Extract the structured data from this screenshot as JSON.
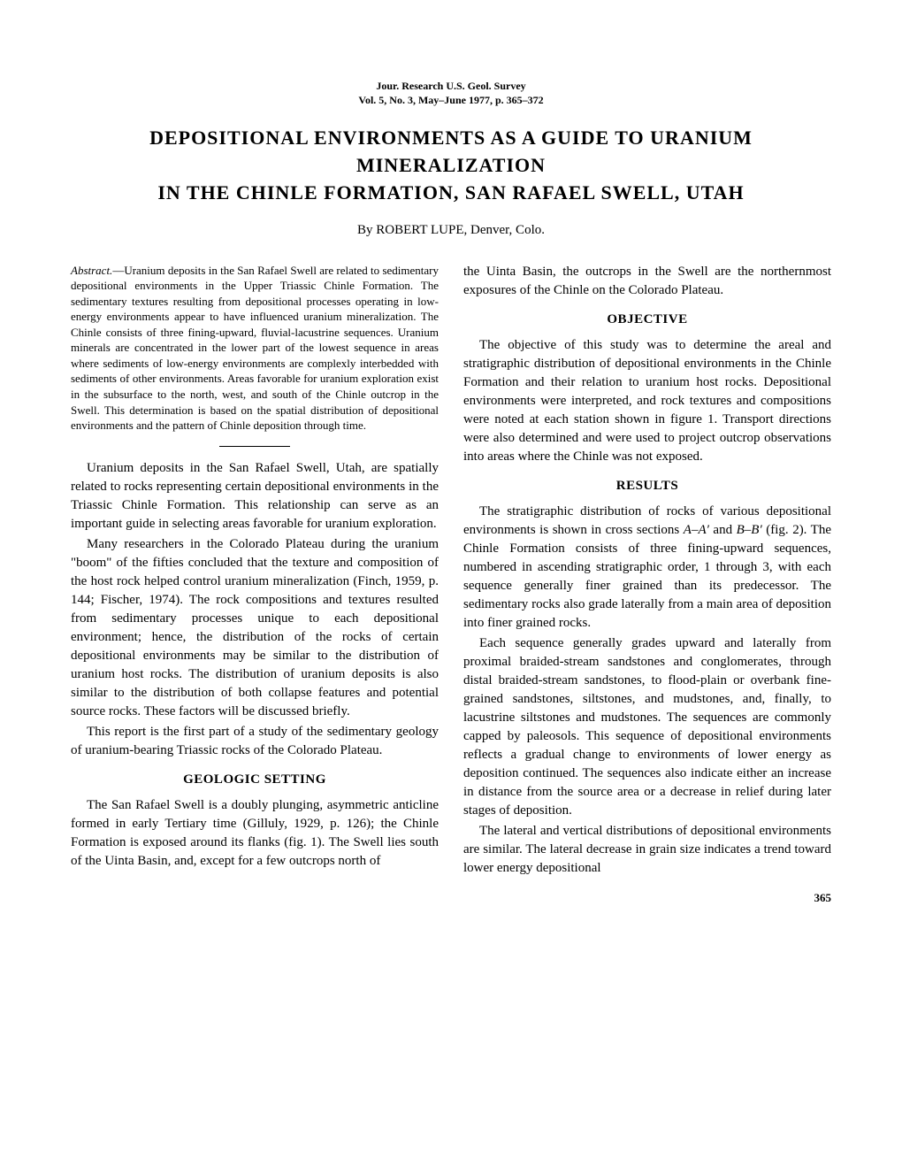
{
  "journal_header": {
    "line1": "Jour. Research U.S. Geol. Survey",
    "line2": "Vol. 5, No. 3, May–June 1977, p. 365–372"
  },
  "title": {
    "line1": "DEPOSITIONAL ENVIRONMENTS AS A GUIDE TO URANIUM MINERALIZATION",
    "line2": "IN THE CHINLE FORMATION, SAN RAFAEL SWELL, UTAH"
  },
  "author": {
    "by": "By",
    "name": "ROBERT LUPE, Denver, Colo."
  },
  "abstract": {
    "label": "Abstract.",
    "text": "—Uranium deposits in the San Rafael Swell are related to sedimentary depositional environments in the Upper Triassic Chinle Formation. The sedimentary textures resulting from depositional processes operating in low-energy environments appear to have influenced uranium mineralization. The Chinle consists of three fining-upward, fluvial-lacustrine sequences. Uranium minerals are concentrated in the lower part of the lowest sequence in areas where sediments of low-energy environments are complexly interbedded with sediments of other environments. Areas favorable for uranium exploration exist in the subsurface to the north, west, and south of the Chinle outcrop in the Swell. This determination is based on the spatial distribution of depositional environments and the pattern of Chinle deposition through time."
  },
  "intro": {
    "p1": "Uranium deposits in the San Rafael Swell, Utah, are spatially related to rocks representing certain depositional environments in the Triassic Chinle Formation. This relationship can serve as an important guide in selecting areas favorable for uranium exploration.",
    "p2": "Many researchers in the Colorado Plateau during the uranium \"boom\" of the fifties concluded that the texture and composition of the host rock helped control uranium mineralization (Finch, 1959, p. 144; Fischer, 1974). The rock compositions and textures resulted from sedimentary processes unique to each depositional environment; hence, the distribution of the rocks of certain depositional environments may be similar to the distribution of uranium host rocks. The distribution of uranium deposits is also similar to the distribution of both collapse features and potential source rocks. These factors will be discussed briefly.",
    "p3": "This report is the first part of a study of the sedimentary geology of uranium-bearing Triassic rocks of the Colorado Plateau."
  },
  "geologic_setting": {
    "heading": "GEOLOGIC SETTING",
    "p1_a": "The San Rafael Swell is a doubly plunging, asymmetric anticline formed in early Tertiary time (Gilluly, 1929, p. 126); the Chinle Formation is exposed around its flanks (fig. 1). The Swell lies south of the Uinta Basin, and, except for a few outcrops north of",
    "p1_b": "the Uinta Basin, the outcrops in the Swell are the northernmost exposures of the Chinle on the Colorado Plateau."
  },
  "objective": {
    "heading": "OBJECTIVE",
    "p1": "The objective of this study was to determine the areal and stratigraphic distribution of depositional environments in the Chinle Formation and their relation to uranium host rocks. Depositional environments were interpreted, and rock textures and compositions were noted at each station shown in figure 1. Transport directions were also determined and were used to project outcrop observations into areas where the Chinle was not exposed."
  },
  "results": {
    "heading": "RESULTS",
    "p1_a": "The stratigraphic distribution of rocks of various depositional environments is shown in cross sections ",
    "p1_aa": "A–A′",
    "p1_and": " and ",
    "p1_bb": "B–B′",
    "p1_b": " (fig. 2). The Chinle Formation consists of three fining-upward sequences, numbered in ascending stratigraphic order, 1 through 3, with each sequence generally finer grained than its predecessor. The sedimentary rocks also grade laterally from a main area of deposition into finer grained rocks.",
    "p2": "Each sequence generally grades upward and laterally from proximal braided-stream sandstones and conglomerates, through distal braided-stream sandstones, to flood-plain or overbank fine-grained sandstones, siltstones, and mudstones, and, finally, to lacustrine siltstones and mudstones. The sequences are commonly capped by paleosols. This sequence of depositional environments reflects a gradual change to environments of lower energy as deposition continued. The sequences also indicate either an increase in distance from the source area or a decrease in relief during later stages of deposition.",
    "p3": "The lateral and vertical distributions of depositional environments are similar. The lateral decrease in grain size indicates a trend toward lower energy depositional"
  },
  "page_number": "365"
}
